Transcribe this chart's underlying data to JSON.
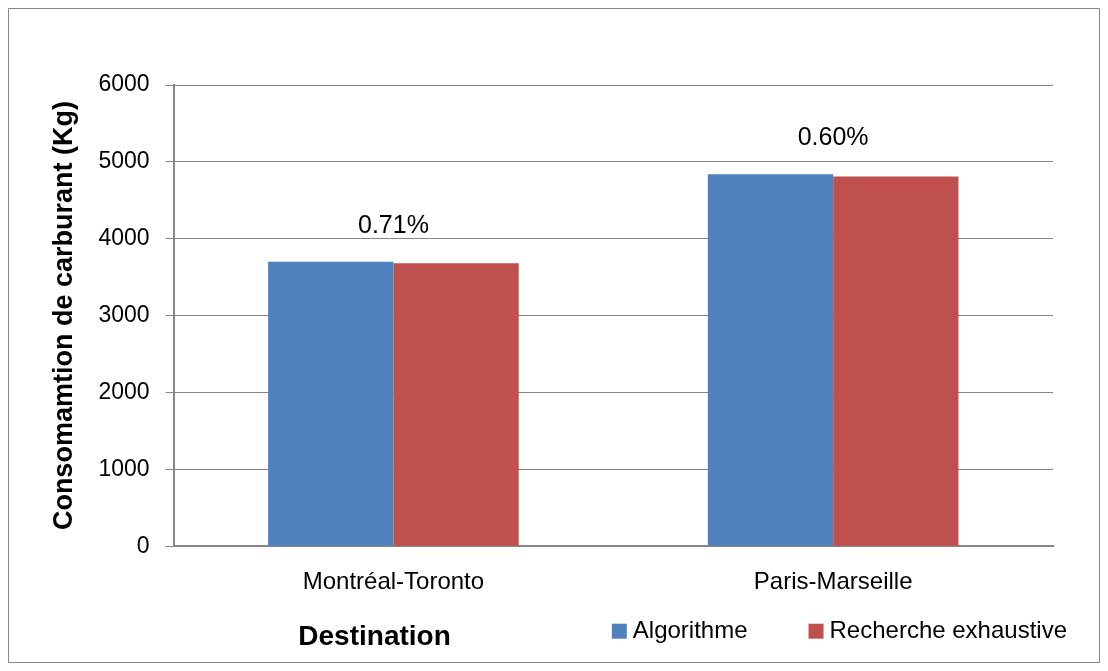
{
  "chart_data": {
    "type": "bar",
    "categories": [
      "Montréal-Toronto",
      "Paris-Marseille"
    ],
    "series": [
      {
        "name": "Algorithme",
        "color": "#4f81bd",
        "values": [
          3700,
          4840
        ]
      },
      {
        "name": "Recherche exhaustive",
        "color": "#c0504d",
        "values": [
          3680,
          4810
        ]
      }
    ],
    "xlabel": "Destination",
    "ylabel": "Consomamtion de carburant (Kg)",
    "ylim": [
      0,
      6000
    ],
    "yticks": [
      0,
      1000,
      2000,
      3000,
      4000,
      5000,
      6000
    ],
    "grid": "y",
    "legend": "bottom right",
    "annotations": [
      "0.71%",
      "0.60%"
    ]
  }
}
